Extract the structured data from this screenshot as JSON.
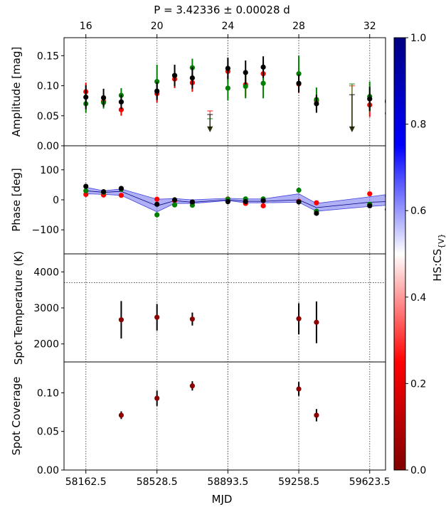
{
  "chart_data": {
    "type": "scatter",
    "title": "P = 3.42336 ± 0.00028 d",
    "xlabel": "MJD",
    "xlim": [
      58050,
      59705
    ],
    "xticks": [
      "58162.5",
      "58528.5",
      "58893.5",
      "59258.5",
      "59623.5"
    ],
    "top_axis": {
      "ticks": [
        "16",
        "20",
        "24",
        "28",
        "32"
      ],
      "tick_positions": [
        58162.5,
        58528.5,
        58893.5,
        59258.5,
        59623.5
      ],
      "extra_gridlines": [
        58893.5,
        59258.5
      ]
    },
    "colorbar": {
      "label": "HS:CS{V}",
      "ticks": [
        "0.0",
        "0.2",
        "0.4",
        "0.6",
        "0.8",
        "1.0"
      ],
      "colors": [
        "#800000",
        "#ff0000",
        "#ffffff",
        "#0000ff",
        "#000080"
      ]
    },
    "panels": [
      {
        "ylabel": "Amplitude [mag]",
        "ylim": [
          0.0,
          0.18
        ],
        "yticks": [
          "0.00",
          "0.05",
          "0.10",
          "0.15"
        ],
        "series": [
          {
            "color": "#ff0000",
            "points": [
              {
                "x": 58162.5,
                "y": 0.09,
                "err": 0.015
              },
              {
                "x": 58253.5,
                "y": 0.074,
                "err": 0.008
              },
              {
                "x": 58344.5,
                "y": 0.06,
                "err": 0.01
              },
              {
                "x": 58528.5,
                "y": 0.087,
                "err": 0.015
              },
              {
                "x": 58619.5,
                "y": 0.111,
                "err": 0.015
              },
              {
                "x": 58710.5,
                "y": 0.105,
                "err": 0.015
              },
              {
                "x": 58893.5,
                "y": 0.124,
                "err": 0.02
              },
              {
                "x": 58984.5,
                "y": 0.102,
                "err": 0.02
              },
              {
                "x": 59075.5,
                "y": 0.12,
                "err": 0.02
              },
              {
                "x": 59258.5,
                "y": 0.103,
                "err": 0.015
              },
              {
                "x": 59349.5,
                "y": 0.075,
                "err": 0.01
              },
              {
                "x": 59623.5,
                "y": 0.068,
                "err": 0.02
              },
              {
                "x": 59714.5,
                "y": 0.054,
                "err": 0.015
              }
            ]
          },
          {
            "color": "#008000",
            "points": [
              {
                "x": 58162.5,
                "y": 0.07,
                "err": 0.015
              },
              {
                "x": 58253.5,
                "y": 0.072,
                "err": 0.01
              },
              {
                "x": 58344.5,
                "y": 0.084,
                "err": 0.012
              },
              {
                "x": 58528.5,
                "y": 0.107,
                "err": 0.028
              },
              {
                "x": 58619.5,
                "y": 0.117,
                "err": 0.015
              },
              {
                "x": 58710.5,
                "y": 0.13,
                "err": 0.015
              },
              {
                "x": 58893.5,
                "y": 0.096,
                "err": 0.02
              },
              {
                "x": 58984.5,
                "y": 0.099,
                "err": 0.02
              },
              {
                "x": 59075.5,
                "y": 0.104,
                "err": 0.025
              },
              {
                "x": 59258.5,
                "y": 0.12,
                "err": 0.03
              },
              {
                "x": 59349.5,
                "y": 0.077,
                "err": 0.02
              },
              {
                "x": 59623.5,
                "y": 0.082,
                "err": 0.025
              },
              {
                "x": 59714.5,
                "y": 0.075,
                "err": 0.02
              }
            ]
          },
          {
            "color": "#000000",
            "points": [
              {
                "x": 58162.5,
                "y": 0.081,
                "err": 0.02
              },
              {
                "x": 58253.5,
                "y": 0.08,
                "err": 0.015
              },
              {
                "x": 58344.5,
                "y": 0.073,
                "err": 0.012
              },
              {
                "x": 58528.5,
                "y": 0.091,
                "err": 0.015
              },
              {
                "x": 58619.5,
                "y": 0.117,
                "err": 0.018
              },
              {
                "x": 58710.5,
                "y": 0.113,
                "err": 0.018
              },
              {
                "x": 58893.5,
                "y": 0.129,
                "err": 0.018
              },
              {
                "x": 58984.5,
                "y": 0.122,
                "err": 0.02
              },
              {
                "x": 59075.5,
                "y": 0.131,
                "err": 0.018
              },
              {
                "x": 59258.5,
                "y": 0.104,
                "err": 0.015
              },
              {
                "x": 59349.5,
                "y": 0.07,
                "err": 0.015
              },
              {
                "x": 59623.5,
                "y": 0.078,
                "err": 0.02
              },
              {
                "x": 59714.5,
                "y": 0.073,
                "err": 0.02
              }
            ]
          }
        ],
        "upper_limits": [
          {
            "x": 58801.5,
            "color": "#ff0000",
            "y": 0.058
          },
          {
            "x": 58801.5,
            "color": "#008000",
            "y": 0.045
          },
          {
            "x": 58801.5,
            "color": "#000000",
            "y": 0.052
          },
          {
            "x": 59532.5,
            "color": "#ff0000",
            "y": 0.1
          },
          {
            "x": 59532.5,
            "color": "#008000",
            "y": 0.103
          },
          {
            "x": 59532.5,
            "color": "#000000",
            "y": 0.085
          }
        ]
      },
      {
        "ylabel": "Phase [deg]",
        "ylim": [
          -180,
          180
        ],
        "yticks": [
          "−100",
          "0",
          "100"
        ],
        "band": {
          "x": [
            58162.5,
            58253.5,
            58344.5,
            58528.5,
            58619.5,
            58710.5,
            58893.5,
            58984.5,
            59075.5,
            59258.5,
            59349.5,
            59623.5,
            59714.5
          ],
          "lower": [
            20,
            18,
            15,
            -40,
            -12,
            -12,
            -3,
            -10,
            -10,
            -8,
            -38,
            -22,
            -18
          ],
          "upper": [
            42,
            30,
            36,
            2,
            4,
            0,
            5,
            3,
            3,
            20,
            -12,
            10,
            18
          ],
          "center": [
            30,
            25,
            28,
            -20,
            -3,
            -8,
            0,
            -5,
            -5,
            0,
            -26,
            -8,
            -6
          ]
        },
        "series": [
          {
            "color": "#ff0000",
            "points": [
              {
                "x": 58162.5,
                "y": 18
              },
              {
                "x": 58253.5,
                "y": 16
              },
              {
                "x": 58344.5,
                "y": 15
              },
              {
                "x": 58528.5,
                "y": 2
              },
              {
                "x": 58619.5,
                "y": -3
              },
              {
                "x": 58710.5,
                "y": -10
              },
              {
                "x": 58893.5,
                "y": 3
              },
              {
                "x": 58984.5,
                "y": -12
              },
              {
                "x": 59075.5,
                "y": -20
              },
              {
                "x": 59258.5,
                "y": -5
              },
              {
                "x": 59349.5,
                "y": -10
              },
              {
                "x": 59623.5,
                "y": 20
              },
              {
                "x": 59714.5,
                "y": 12
              }
            ]
          },
          {
            "color": "#008000",
            "points": [
              {
                "x": 58162.5,
                "y": 30
              },
              {
                "x": 58253.5,
                "y": 25
              },
              {
                "x": 58344.5,
                "y": 35
              },
              {
                "x": 58528.5,
                "y": -50
              },
              {
                "x": 58619.5,
                "y": -17
              },
              {
                "x": 58710.5,
                "y": -18
              },
              {
                "x": 58893.5,
                "y": 2
              },
              {
                "x": 58984.5,
                "y": 3
              },
              {
                "x": 59075.5,
                "y": 3
              },
              {
                "x": 59258.5,
                "y": 32
              },
              {
                "x": 59349.5,
                "y": -38
              },
              {
                "x": 59623.5,
                "y": -15
              }
            ]
          },
          {
            "color": "#000000",
            "points": [
              {
                "x": 58162.5,
                "y": 45
              },
              {
                "x": 58253.5,
                "y": 27
              },
              {
                "x": 58344.5,
                "y": 38
              },
              {
                "x": 58528.5,
                "y": -15
              },
              {
                "x": 58619.5,
                "y": 0
              },
              {
                "x": 58710.5,
                "y": -7
              },
              {
                "x": 58893.5,
                "y": -6
              },
              {
                "x": 58984.5,
                "y": -6
              },
              {
                "x": 59075.5,
                "y": -3
              },
              {
                "x": 59258.5,
                "y": -7
              },
              {
                "x": 59349.5,
                "y": -45
              },
              {
                "x": 59623.5,
                "y": -20
              },
              {
                "x": 59714.5,
                "y": -32
              }
            ]
          }
        ]
      },
      {
        "ylabel": "Spot Temperature (K)",
        "ylim": [
          1500,
          4500
        ],
        "yticks": [
          "2000",
          "3000",
          "4000"
        ],
        "hline": 3700,
        "series": [
          {
            "color": "#8b0000",
            "points": [
              {
                "x": 58344.5,
                "y": 2670,
                "err": 520
              },
              {
                "x": 58528.5,
                "y": 2740,
                "err": 370
              },
              {
                "x": 58710.5,
                "y": 2690,
                "err": 180
              },
              {
                "x": 59258.5,
                "y": 2700,
                "err": 430
              },
              {
                "x": 59349.5,
                "y": 2600,
                "err": 580
              }
            ]
          }
        ]
      },
      {
        "ylabel": "Spot Coverage",
        "ylim": [
          0.0,
          0.14
        ],
        "yticks": [
          "0.00",
          "0.05",
          "0.10"
        ],
        "series": [
          {
            "color": "#8b0000",
            "points": [
              {
                "x": 58344.5,
                "y": 0.071,
                "err": 0.005
              },
              {
                "x": 58528.5,
                "y": 0.093,
                "err": 0.01
              },
              {
                "x": 58710.5,
                "y": 0.109,
                "err": 0.006
              },
              {
                "x": 59258.5,
                "y": 0.105,
                "err": 0.009
              },
              {
                "x": 59349.5,
                "y": 0.071,
                "err": 0.008
              }
            ]
          }
        ]
      }
    ]
  }
}
